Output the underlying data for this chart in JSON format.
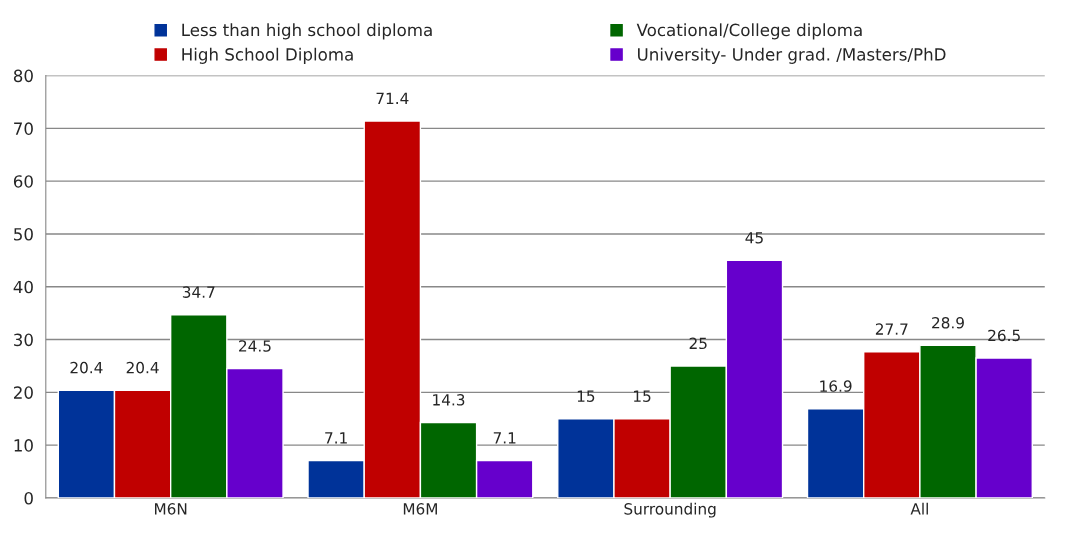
{
  "chart_data": {
    "type": "bar",
    "categories": [
      "M6N",
      "M6M",
      "Surrounding",
      "All"
    ],
    "series": [
      {
        "name": "Less than high school diploma",
        "color": "#003399",
        "values": [
          20.4,
          7.1,
          15,
          16.9
        ]
      },
      {
        "name": "High School Diploma",
        "color": "#c00000",
        "values": [
          20.4,
          71.4,
          15,
          27.7
        ]
      },
      {
        "name": "Vocational/College diploma",
        "color": "#006600",
        "values": [
          34.7,
          14.3,
          25,
          28.9
        ]
      },
      {
        "name": "University- Under grad. /Masters/PhD",
        "color": "#6600cc",
        "values": [
          24.5,
          7.1,
          45,
          26.5
        ]
      }
    ],
    "ylim": [
      0,
      80
    ],
    "yticks": [
      0,
      10,
      20,
      30,
      40,
      50,
      60,
      70,
      80
    ],
    "grid": "y",
    "legend": "top",
    "data_labels": true
  }
}
